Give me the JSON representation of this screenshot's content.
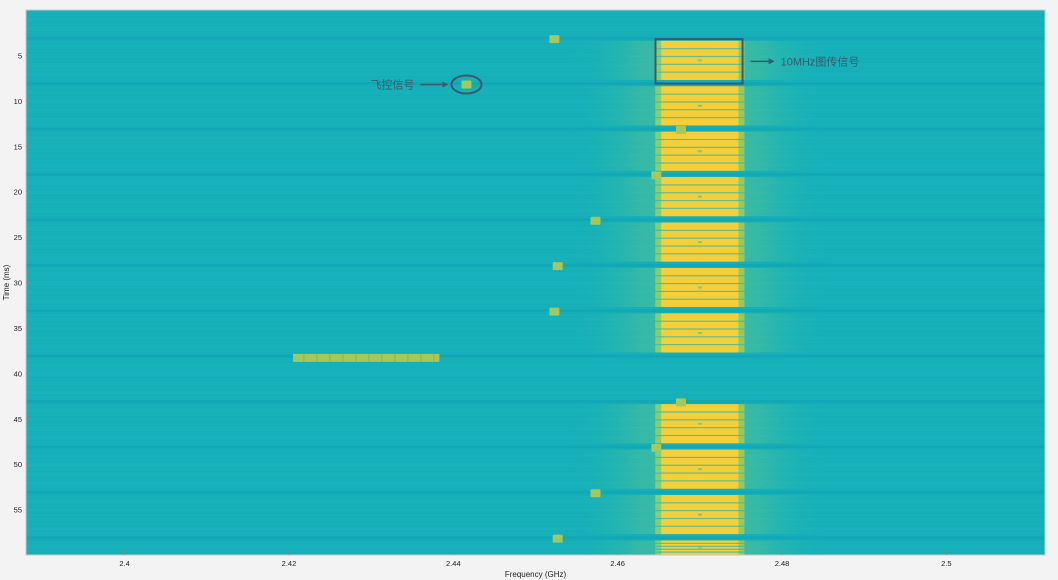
{
  "chart_data": {
    "type": "heatmap",
    "title": "",
    "xlabel": "Frequency (GHz)",
    "ylabel": "Time (ms)",
    "xlim": [
      2.388,
      2.512
    ],
    "ylim": [
      0,
      60
    ],
    "y_reversed": true,
    "x_ticks": [
      2.4,
      2.42,
      2.44,
      2.46,
      2.48,
      2.5
    ],
    "x_tick_labels": [
      "2.4",
      "2.42",
      "2.44",
      "2.46",
      "2.48",
      "2.5"
    ],
    "y_ticks": [
      5,
      10,
      15,
      20,
      25,
      30,
      35,
      40,
      45,
      50,
      55
    ],
    "y_tick_labels": [
      "5",
      "10",
      "15",
      "20",
      "25",
      "30",
      "35",
      "40",
      "45",
      "50",
      "55"
    ],
    "grid": false,
    "colors": {
      "background": "#16b1b9",
      "band_dark": "#0e9fb2",
      "signal_core": "#f5cf3a",
      "signal_mid": "#9ccf5c",
      "signal_edge": "#4fc19a",
      "hopping": "#a6c85a",
      "annotation": "#3a5a6e"
    },
    "wideband_signal": {
      "f_start": 2.4653,
      "f_end": 2.4747,
      "bursts": [
        {
          "t_start": 3.4,
          "t_end": 7.7
        },
        {
          "t_start": 8.4,
          "t_end": 12.7
        },
        {
          "t_start": 13.4,
          "t_end": 17.7
        },
        {
          "t_start": 18.4,
          "t_end": 22.7
        },
        {
          "t_start": 23.4,
          "t_end": 27.7
        },
        {
          "t_start": 28.4,
          "t_end": 32.7
        },
        {
          "t_start": 33.4,
          "t_end": 37.7
        },
        {
          "t_start": 43.4,
          "t_end": 47.7
        },
        {
          "t_start": 48.4,
          "t_end": 52.7
        },
        {
          "t_start": 53.4,
          "t_end": 57.7
        },
        {
          "t_start": 58.4,
          "t_end": 60
        }
      ]
    },
    "hopping_signal": [
      {
        "f": 2.4523,
        "t": 3.2
      },
      {
        "f": 2.4416,
        "t": 8.2
      },
      {
        "f": 2.4677,
        "t": 13.2
      },
      {
        "f": 2.4647,
        "t": 18.2
      },
      {
        "f": 2.4573,
        "t": 23.2
      },
      {
        "f": 2.4527,
        "t": 28.2
      },
      {
        "f": 2.4523,
        "t": 33.2
      },
      {
        "f": 2.4677,
        "t": 43.2
      },
      {
        "f": 2.4647,
        "t": 48.2
      },
      {
        "f": 2.4573,
        "t": 53.2
      },
      {
        "f": 2.4527,
        "t": 58.2
      }
    ],
    "long_signal": {
      "f_start": 2.4205,
      "f_end": 2.4383,
      "t": 38.3
    },
    "annotations": [
      {
        "text": "飞控信号",
        "target": "hopping-ellipse",
        "target_f": 2.4416,
        "target_t": 8.2
      },
      {
        "text": "10MHz图传信号",
        "target": "wideband-box",
        "target_f_range": [
          2.4646,
          2.4752
        ],
        "target_t_range": [
          3.2,
          8.1
        ]
      }
    ]
  }
}
